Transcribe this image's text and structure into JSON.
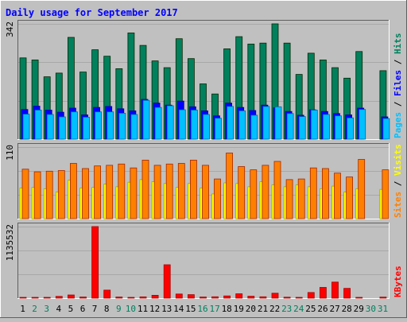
{
  "chart_data": {
    "type": "bar",
    "title": "Daily usage for September 2017",
    "colors": {
      "background": "#c0c0c0",
      "title": "#0000ff",
      "hits": "#00805c",
      "files": "#0000ff",
      "pages": "#00c0ff",
      "visits": "#ffff00",
      "sites": "#ff8000",
      "kbytes": "#ff0000",
      "weekend_label": "#00805c",
      "weekday_label": "#000000"
    },
    "categories": [
      "1",
      "2",
      "3",
      "4",
      "5",
      "6",
      "7",
      "8",
      "9",
      "10",
      "11",
      "12",
      "13",
      "14",
      "15",
      "16",
      "17",
      "18",
      "19",
      "20",
      "21",
      "22",
      "23",
      "24",
      "25",
      "26",
      "27",
      "28",
      "29",
      "30",
      "31"
    ],
    "weekend_days": [
      "2",
      "3",
      "9",
      "10",
      "16",
      "17",
      "23",
      "24",
      "30",
      "31"
    ],
    "panels": [
      {
        "id": "hits",
        "ymax_label": "342",
        "ylim": [
          0,
          342
        ],
        "right_labels": [
          {
            "text": "Hits",
            "color": "#00805c"
          },
          {
            "text": " / ",
            "color": "#000000"
          },
          {
            "text": "Files",
            "color": "#0000ff"
          },
          {
            "text": " / ",
            "color": "#000000"
          },
          {
            "text": "Pages",
            "color": "#00c0ff"
          }
        ],
        "series": [
          {
            "name": "Hits",
            "color": "#00805c",
            "values": [
              241,
              235,
              185,
              196,
              302,
              199,
              265,
              246,
              209,
              315,
              278,
              232,
              212,
              298,
              239,
              164,
              134,
              268,
              304,
              282,
              285,
              342,
              285,
              192,
              255,
              235,
              212,
              181,
              260,
              0,
              203
            ]
          },
          {
            "name": "Files",
            "color": "#0000ff",
            "values": [
              88,
              98,
              86,
              80,
              92,
              72,
              94,
              97,
              90,
              84,
              118,
              107,
              101,
              113,
              96,
              84,
              69,
              107,
              94,
              85,
              101,
              93,
              82,
              71,
              87,
              82,
              76,
              72,
              92,
              0,
              66
            ]
          },
          {
            "name": "Pages",
            "color": "#00c0ff",
            "values": [
              74,
              86,
              73,
              66,
              81,
              65,
              81,
              81,
              77,
              73,
              115,
              94,
              99,
              87,
              86,
              73,
              62,
              97,
              84,
              71,
              97,
              96,
              76,
              67,
              86,
              73,
              69,
              63,
              88,
              0,
              61
            ]
          }
        ]
      },
      {
        "id": "visits",
        "ymax_label": "110",
        "ylim": [
          0,
          110
        ],
        "right_labels": [
          {
            "text": "Visits",
            "color": "#ffff00"
          },
          {
            "text": " / ",
            "color": "#000000"
          },
          {
            "text": "Sites",
            "color": "#ff8000"
          }
        ],
        "series": [
          {
            "name": "Visits",
            "color": "#ffff00",
            "values": [
              47,
              48,
              46,
              41,
              59,
              47,
              48,
              53,
              49,
              56,
              60,
              57,
              54,
              48,
              54,
              47,
              38,
              55,
              54,
              49,
              57,
              52,
              49,
              52,
              49,
              46,
              50,
              41,
              46,
              0,
              45
            ]
          },
          {
            "name": "Sites",
            "color": "#ff8000",
            "values": [
              76,
              72,
              73,
              74,
              85,
              77,
              81,
              82,
              84,
              78,
              90,
              82,
              84,
              85,
              90,
              82,
              61,
              101,
              80,
              75,
              82,
              88,
              60,
              61,
              78,
              77,
              70,
              64,
              91,
              0,
              75
            ]
          }
        ]
      },
      {
        "id": "kbytes",
        "ymax_label": "1135532",
        "ylim": [
          0,
          1135532
        ],
        "right_labels": [
          {
            "text": "KBytes",
            "color": "#ff0000"
          }
        ],
        "series": [
          {
            "name": "KBytes",
            "color": "#ff0000",
            "values": [
              8000,
              12000,
              10000,
              28000,
              50000,
              18000,
              1135532,
              128000,
              18000,
              12000,
              20000,
              45000,
              530000,
              65000,
              55000,
              18000,
              22000,
              35000,
              70000,
              30000,
              22000,
              78000,
              15000,
              12000,
              90000,
              170000,
              255000,
              155000,
              12000,
              0,
              16000
            ]
          }
        ]
      }
    ]
  }
}
